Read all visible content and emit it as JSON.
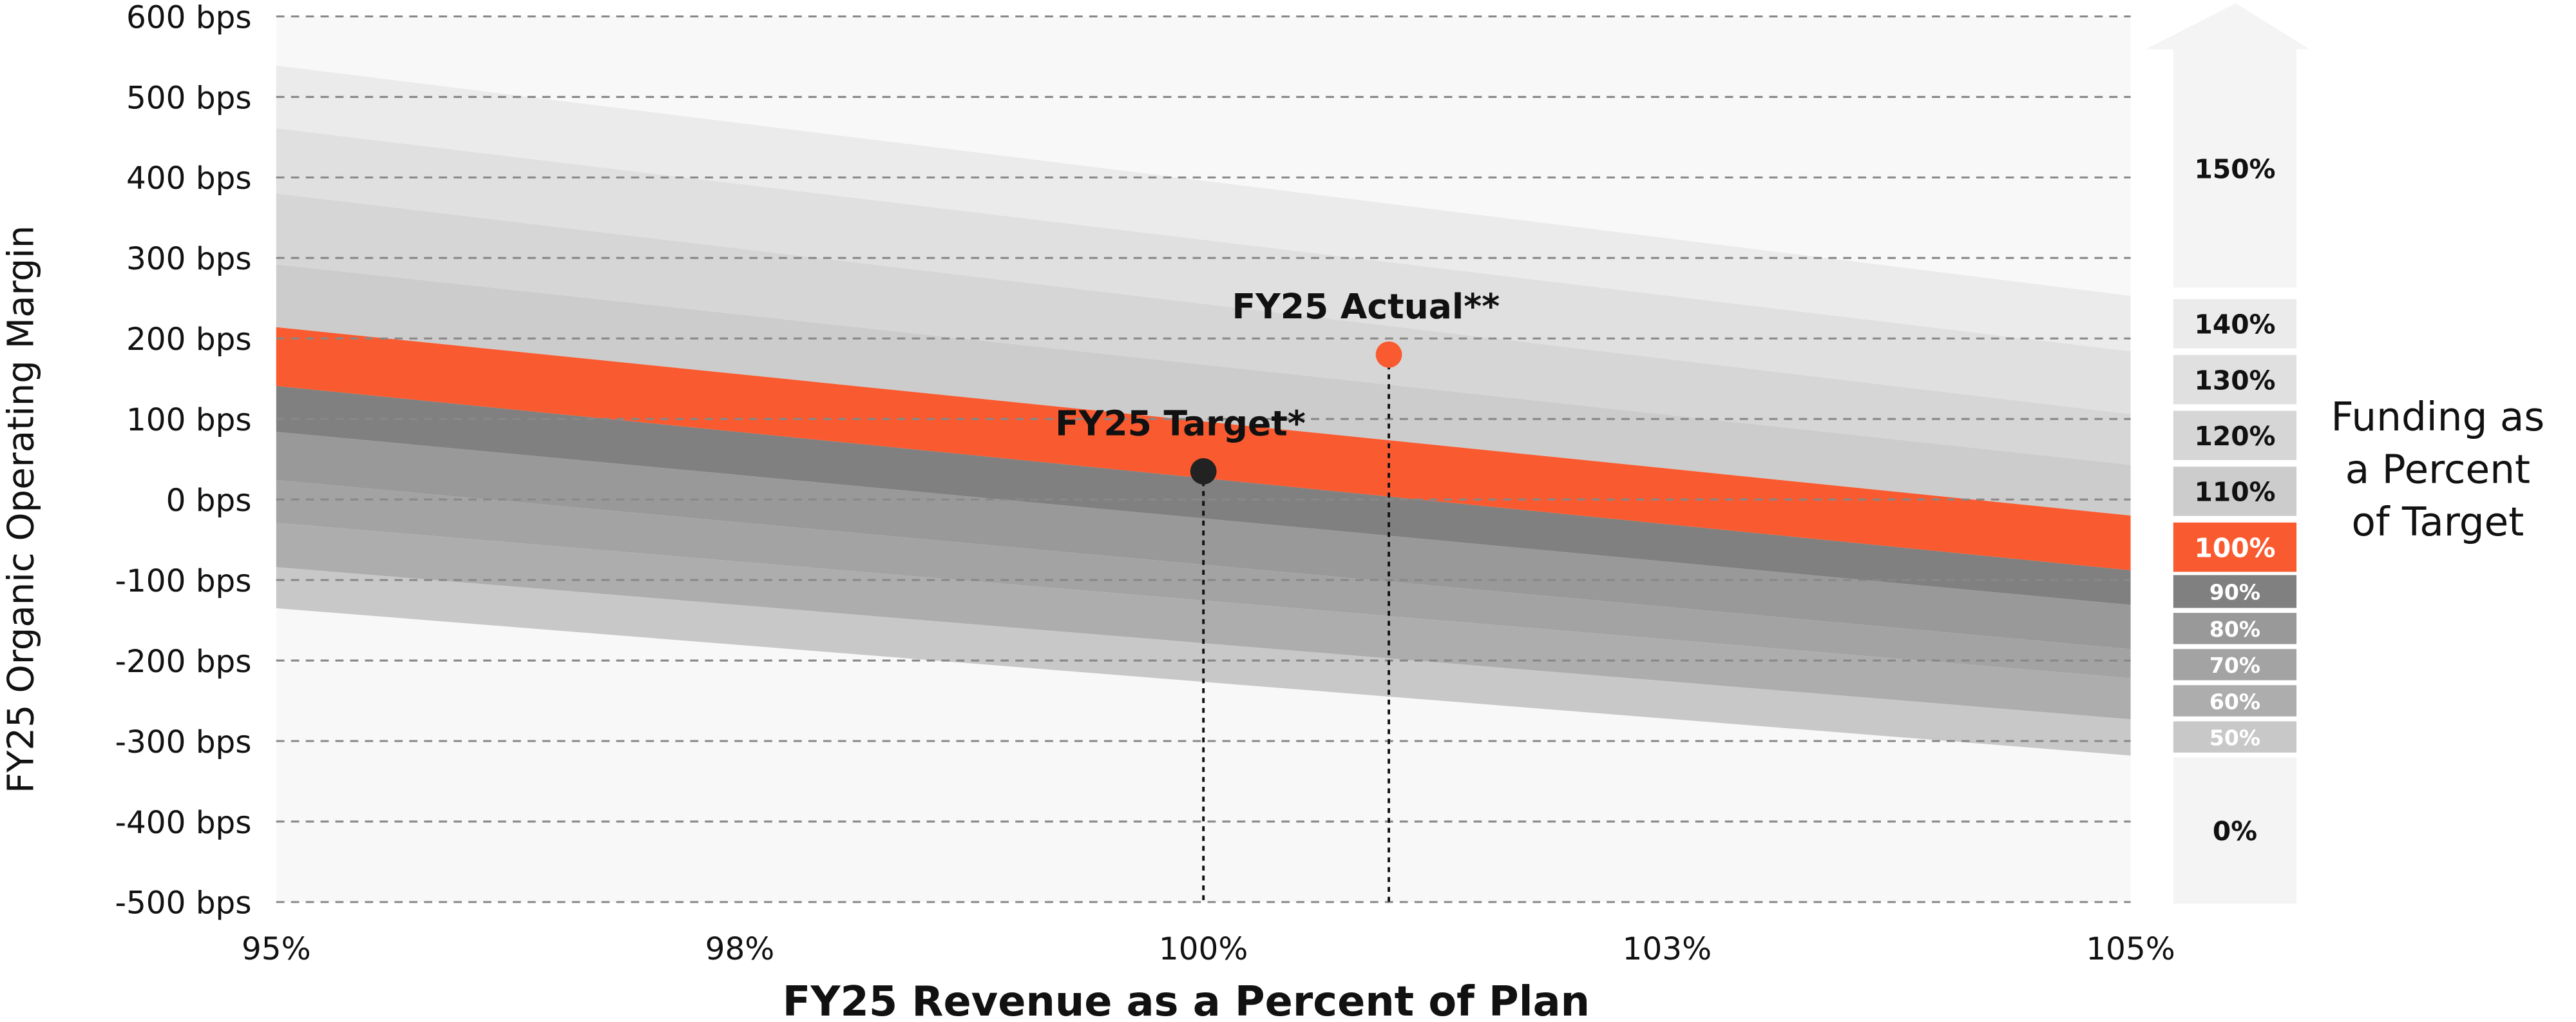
{
  "chart_data": {
    "type": "area",
    "xlabel": "FY25 Revenue as a Percent of Plan",
    "ylabel": "FY25 Organic Operating Margin",
    "xlim": [
      95,
      105
    ],
    "ylim": [
      -500,
      600
    ],
    "x_ticks": [
      95,
      97.5,
      100,
      102.5,
      105
    ],
    "x_tick_labels": [
      "95%",
      "98%",
      "100%",
      "103%",
      "105%"
    ],
    "y_ticks": [
      600,
      500,
      400,
      300,
      200,
      100,
      0,
      -100,
      -200,
      -300,
      -400,
      -500
    ],
    "y_tick_labels": [
      "600 bps",
      "500 bps",
      "400 bps",
      "300 bps",
      "200 bps",
      "100 bps",
      "0 bps",
      "-100 bps",
      "-200 bps",
      "-300 bps",
      "-400 bps",
      "-500 bps"
    ],
    "grid": "horizontal dashed",
    "bands": [
      {
        "funding": "140%",
        "upper": [
          539,
          253
        ],
        "lower": [
          461,
          184
        ],
        "color": "#ebebeb"
      },
      {
        "funding": "130%",
        "upper": [
          461,
          184
        ],
        "lower": [
          380,
          106
        ],
        "color": "#e0e0e0"
      },
      {
        "funding": "120%",
        "upper": [
          380,
          106
        ],
        "lower": [
          292,
          43
        ],
        "color": "#d6d6d6"
      },
      {
        "funding": "110%",
        "upper": [
          292,
          43
        ],
        "lower": [
          214,
          -20
        ],
        "color": "#cccccc"
      },
      {
        "funding": "100%",
        "upper": [
          214,
          -20
        ],
        "lower": [
          141,
          -88
        ],
        "color": "#fa5a2f"
      },
      {
        "funding": "90%",
        "upper": [
          141,
          -88
        ],
        "lower": [
          84,
          -131
        ],
        "color": "#808080"
      },
      {
        "funding": "80%",
        "upper": [
          84,
          -131
        ],
        "lower": [
          24,
          -186
        ],
        "color": "#999999"
      },
      {
        "funding": "70%",
        "upper": [
          24,
          -186
        ],
        "lower": [
          -29,
          -222
        ],
        "color": "#a3a3a3"
      },
      {
        "funding": "60%",
        "upper": [
          -29,
          -222
        ],
        "lower": [
          -84,
          -273
        ],
        "color": "#adadad"
      },
      {
        "funding": "50%",
        "upper": [
          -84,
          -273
        ],
        "lower": [
          -135,
          -318
        ],
        "color": "#c8c8c8"
      }
    ],
    "points": [
      {
        "label": "FY25 Target*",
        "x": 100,
        "y": 35,
        "color": "#222222"
      },
      {
        "label": "FY25 Actual**",
        "x": 101,
        "y": 180,
        "color": "#fa5a2f"
      }
    ],
    "legend": {
      "title_lines": [
        "Funding as",
        "a Percent",
        "of Target"
      ],
      "items": [
        {
          "label": "150%",
          "color": "#f4f4f4",
          "text_color": "#111111"
        },
        {
          "label": "140%",
          "color": "#ebebeb",
          "text_color": "#111111"
        },
        {
          "label": "130%",
          "color": "#e0e0e0",
          "text_color": "#111111"
        },
        {
          "label": "120%",
          "color": "#d6d6d6",
          "text_color": "#111111"
        },
        {
          "label": "110%",
          "color": "#cccccc",
          "text_color": "#111111"
        },
        {
          "label": "100%",
          "color": "#fa5a2f",
          "text_color": "#ffffff"
        },
        {
          "label": "90%",
          "color": "#808080",
          "text_color": "#ffffff"
        },
        {
          "label": "80%",
          "color": "#999999",
          "text_color": "#ffffff"
        },
        {
          "label": "70%",
          "color": "#a3a3a3",
          "text_color": "#ffffff"
        },
        {
          "label": "60%",
          "color": "#adadad",
          "text_color": "#ffffff"
        },
        {
          "label": "50%",
          "color": "#c8c8c8",
          "text_color": "#ffffff"
        },
        {
          "label": "0%",
          "color": "#f4f4f4",
          "text_color": "#111111"
        }
      ]
    }
  }
}
